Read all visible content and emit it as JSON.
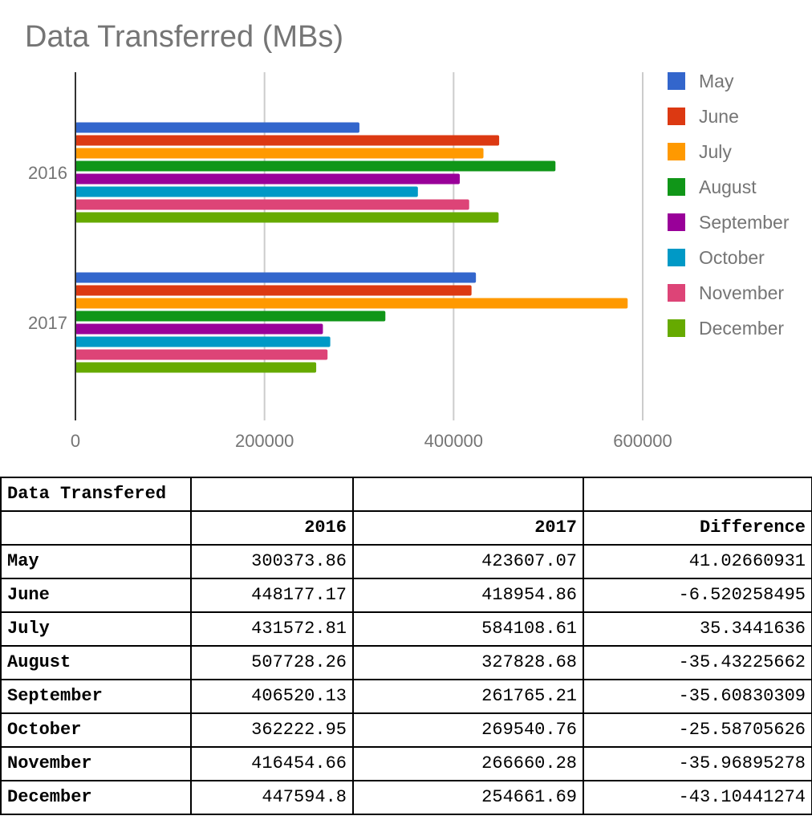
{
  "chart_data": {
    "type": "bar",
    "orientation": "horizontal",
    "title": "Data Transferred (MBs)",
    "categories": [
      "2016",
      "2017"
    ],
    "series": [
      {
        "name": "May",
        "color": "#3366cc",
        "values": [
          300373.86,
          423607.07
        ]
      },
      {
        "name": "June",
        "color": "#dc3912",
        "values": [
          448177.17,
          418954.86
        ]
      },
      {
        "name": "July",
        "color": "#ff9900",
        "values": [
          431572.81,
          584108.61
        ]
      },
      {
        "name": "August",
        "color": "#109618",
        "values": [
          507728.26,
          327828.68
        ]
      },
      {
        "name": "September",
        "color": "#990099",
        "values": [
          406520.13,
          261765.21
        ]
      },
      {
        "name": "October",
        "color": "#0099c6",
        "values": [
          362222.95,
          269540.76
        ]
      },
      {
        "name": "November",
        "color": "#dd4477",
        "values": [
          416454.66,
          266660.28
        ]
      },
      {
        "name": "December",
        "color": "#66aa00",
        "values": [
          447594.8,
          254661.69
        ]
      }
    ],
    "x_ticks": [
      "0",
      "200000",
      "400000",
      "600000"
    ],
    "xlim": [
      0,
      600000
    ],
    "grid": true,
    "legend_position": "right"
  },
  "table": {
    "title": "Data Transfered",
    "headers": [
      "2016",
      "2017",
      "Difference"
    ],
    "rows": [
      {
        "month": "May",
        "y2016": "300373.86",
        "y2017": "423607.07",
        "diff": "41.02660931"
      },
      {
        "month": "June",
        "y2016": "448177.17",
        "y2017": "418954.86",
        "diff": "-6.520258495"
      },
      {
        "month": "July",
        "y2016": "431572.81",
        "y2017": "584108.61",
        "diff": "35.3441636"
      },
      {
        "month": "August",
        "y2016": "507728.26",
        "y2017": "327828.68",
        "diff": "-35.43225662"
      },
      {
        "month": "September",
        "y2016": "406520.13",
        "y2017": "261765.21",
        "diff": "-35.60830309"
      },
      {
        "month": "October",
        "y2016": "362222.95",
        "y2017": "269540.76",
        "diff": "-25.58705626"
      },
      {
        "month": "November",
        "y2016": "416454.66",
        "y2017": "266660.28",
        "diff": "-35.96895278"
      },
      {
        "month": "December",
        "y2016": "447594.8",
        "y2017": "254661.69",
        "diff": "-43.10441274"
      }
    ]
  }
}
